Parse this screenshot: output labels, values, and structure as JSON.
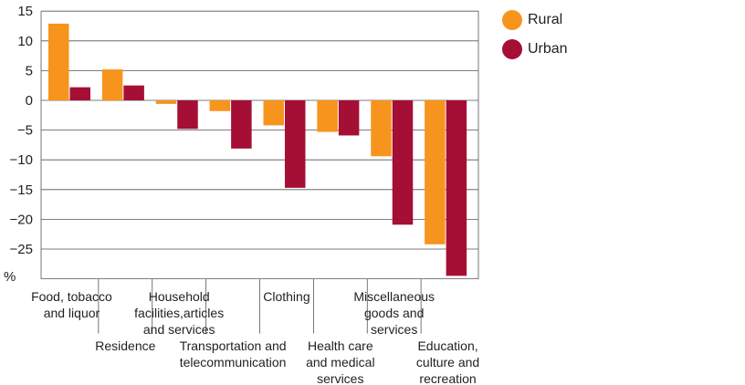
{
  "chart_data": {
    "type": "bar",
    "title": "",
    "xlabel": "",
    "ylabel": "%",
    "ylim": [
      -30,
      15
    ],
    "yticks": [
      15,
      10,
      5,
      0,
      -5,
      -10,
      -15,
      -20,
      -25
    ],
    "grid": true,
    "legend_position": "top-right",
    "categories": [
      [
        "Food, tobacco",
        "and liquor"
      ],
      [
        "Residence"
      ],
      [
        "Household",
        "facilities,articles",
        "and services"
      ],
      [
        "Transportation and",
        "telecommunication"
      ],
      [
        "Clothing"
      ],
      [
        "Health care",
        "and medical",
        "services"
      ],
      [
        "Miscellaneous",
        "goods and",
        "services"
      ],
      [
        "Education,",
        "culture and",
        "recreation"
      ]
    ],
    "series": [
      {
        "name": "Rural",
        "color": "#F7941D",
        "values": [
          12.9,
          5.2,
          -0.6,
          -1.8,
          -4.2,
          -5.3,
          -9.4,
          -24.2
        ]
      },
      {
        "name": "Urban",
        "color": "#A50E35",
        "values": [
          2.2,
          2.5,
          -4.8,
          -8.1,
          -14.7,
          -5.9,
          -20.9,
          -29.5
        ]
      }
    ]
  }
}
